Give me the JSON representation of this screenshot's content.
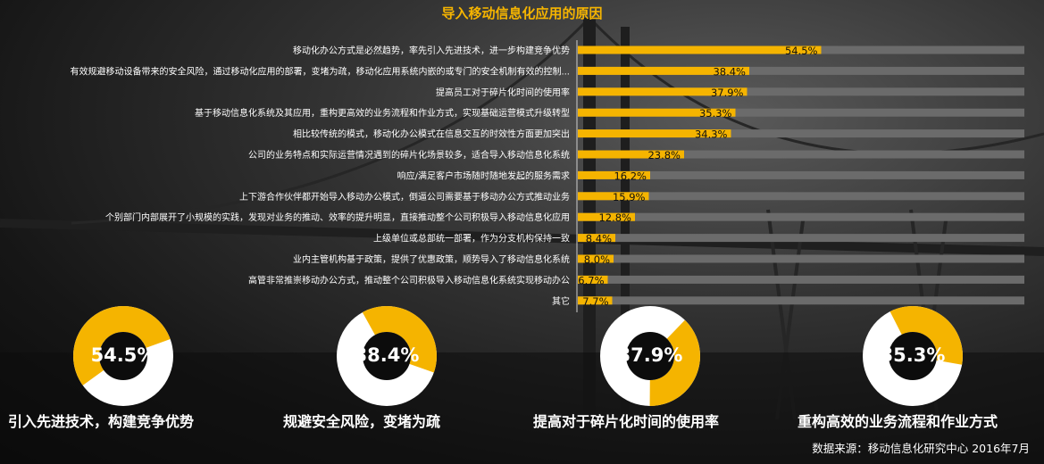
{
  "title": "导入移动信息化应用的原因",
  "colors": {
    "accent": "#f5b400",
    "track": "#6b6b6b",
    "ring_rest": "#ffffff",
    "ring_hole": "#0c0c0c"
  },
  "chart_data": [
    {
      "type": "bar",
      "orientation": "horizontal",
      "title": "导入移动信息化应用的原因",
      "categories": [
        "移动化办公方式是必然趋势，率先引入先进技术，进一步构建竞争优势",
        "有效规避移动设备带来的安全风险，通过移动化应用的部署，变堵为疏，移动化应用系统内嵌的或专门的安全机制有效的控制...",
        "提高员工对于碎片化时间的使用率",
        "基于移动信息化系统及其应用，重构更高效的业务流程和作业方式，实现基础运营模式升级转型",
        "相比较传统的模式，移动化办公模式在信息交互的时效性方面更加突出",
        "公司的业务特点和实际运营情况遇到的碎片化场景较多，适合导入移动信息化系统",
        "响应/满足客户市场随时随地发起的服务需求",
        "上下游合作伙伴都开始导入移动办公模式，倒逼公司需要基于移动办公方式推动业务",
        "个别部门内部展开了小规模的实践，发现对业务的推动、效率的提升明显，直接推动整个公司积极导入移动信息化应用",
        "上级单位或总部统一部署，作为分支机构保持一致",
        "业内主管机构基于政策，提供了优惠政策，顺势导入了移动信息化系统",
        "高管非常推崇移动办公方式，推动整个公司积极导入移动信息化系统实现移动办公",
        "其它"
      ],
      "values": [
        54.5,
        38.4,
        37.9,
        35.3,
        34.3,
        23.8,
        16.2,
        15.9,
        12.8,
        8.4,
        8.0,
        6.7,
        7.7
      ],
      "value_labels": [
        "54.5%",
        "38.4%",
        "37.9%",
        "35.3%",
        "34.3%",
        "23.8%",
        "16.2%",
        "15.9%",
        "12.8%",
        "8.4%",
        "8.0%",
        "6.7%",
        "7.7%"
      ],
      "xlim": [
        0,
        100
      ],
      "grid": false,
      "legend": "none"
    },
    {
      "type": "pie",
      "variant": "donut",
      "items": [
        {
          "caption": "引入先进技术，构建竞争优势",
          "value": 54.5,
          "label": "54.5%"
        },
        {
          "caption": "规避安全风险，变堵为疏",
          "value": 38.4,
          "label": "38.4%"
        },
        {
          "caption": "提高对于碎片化时间的使用率",
          "value": 37.9,
          "label": "37.9%"
        },
        {
          "caption": "重构高效的业务流程和作业方式",
          "value": 35.3,
          "label": "35.3%"
        }
      ]
    }
  ],
  "source": "数据来源：移动信息化研究中心 2016年7月"
}
